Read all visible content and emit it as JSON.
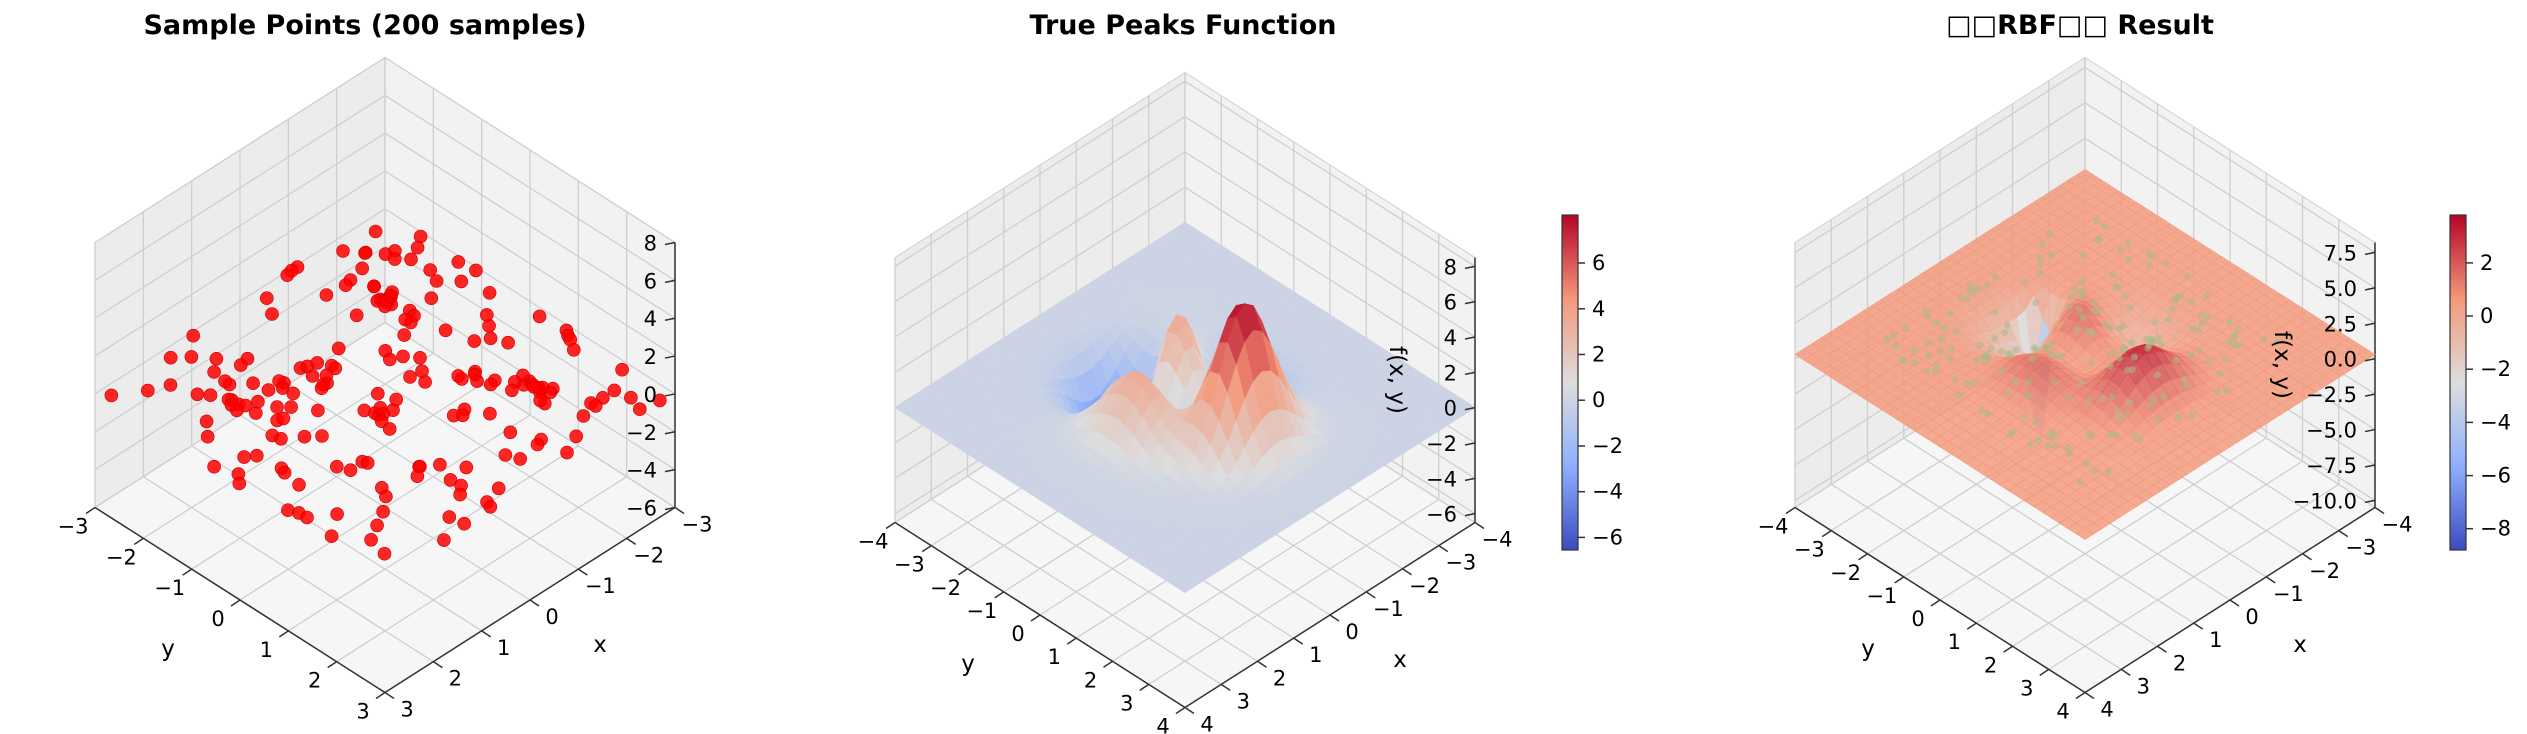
{
  "chart_data": [
    {
      "type": "scatter3d",
      "title": "Sample Points (200 samples)",
      "xlabel": "x",
      "ylabel": "y",
      "zlabel": "",
      "xlim": [
        -3,
        3
      ],
      "ylim": [
        -3,
        3
      ],
      "zlim": [
        -6,
        8
      ],
      "xticks": [
        -3,
        -2,
        -1,
        0,
        1,
        2,
        3
      ],
      "yticks": [
        -3,
        -2,
        -1,
        0,
        1,
        2,
        3
      ],
      "zticks": [
        -6,
        -4,
        -2,
        0,
        2,
        4,
        6,
        8
      ],
      "point_color": "#ff0000",
      "sample_count": 200,
      "grid": true
    },
    {
      "type": "surface3d",
      "title": "True Peaks Function",
      "xlabel": "x",
      "ylabel": "y",
      "zlabel": "f(x, y)",
      "xlim": [
        -4,
        4
      ],
      "ylim": [
        -4,
        4
      ],
      "zlim": [
        -6.5,
        8.5
      ],
      "xticks": [
        -4,
        -3,
        -2,
        -1,
        0,
        1,
        2,
        3,
        4
      ],
      "yticks": [
        -4,
        -3,
        -2,
        -1,
        0,
        1,
        2,
        3,
        4
      ],
      "zticks": [
        -6,
        -4,
        -2,
        0,
        2,
        4,
        6,
        8
      ],
      "colormap": "coolwarm",
      "colorbar": {
        "min": -6.55,
        "max": 8.1,
        "ticks": [
          -6,
          -4,
          -2,
          0,
          2,
          4,
          6
        ]
      },
      "grid": true
    },
    {
      "type": "surface3d",
      "title": "□□RBF□□ Result",
      "xlabel": "x",
      "ylabel": "y",
      "zlabel": "f(x, y)",
      "xlim": [
        -4,
        4
      ],
      "ylim": [
        -4,
        4
      ],
      "zlim": [
        -10.5,
        8.2
      ],
      "xticks": [
        -4,
        -3,
        -2,
        -1,
        0,
        1,
        2,
        3,
        4
      ],
      "yticks": [
        -4,
        -3,
        -2,
        -1,
        0,
        1,
        2,
        3,
        4
      ],
      "zticks": [
        -10.0,
        -7.5,
        -5.0,
        -2.5,
        0.0,
        2.5,
        5.0,
        7.5
      ],
      "colormap": "coolwarm",
      "colorbar": {
        "min": -8.8,
        "max": 3.8,
        "ticks": [
          -8,
          -6,
          -4,
          -2,
          0,
          2
        ]
      },
      "overlay_points_color": "#a8b98a",
      "grid": true
    }
  ]
}
